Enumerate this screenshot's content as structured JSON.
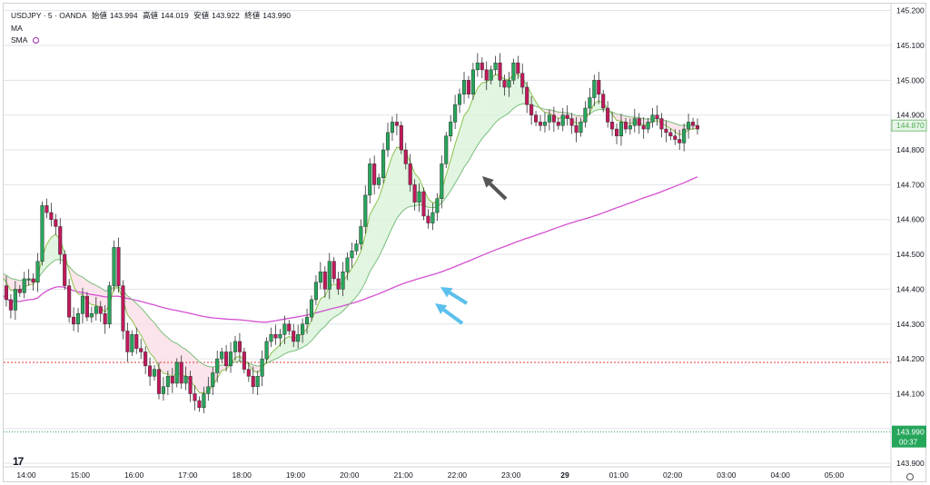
{
  "legend": {
    "symbol": "USDJPY · 5 · OANDA",
    "open_label": "始値",
    "open": "143.994",
    "high_label": "高値",
    "high": "144.019",
    "low_label": "安値",
    "low": "143.922",
    "close_label": "終値",
    "close": "143.990",
    "ma_label": "MA",
    "sma_label": "SMA"
  },
  "tv_logo": "17",
  "price_tags": {
    "ma_value": "144.870",
    "last_price": "143.990",
    "countdown": "00:37"
  },
  "colors": {
    "up": "#26a65b",
    "down": "#c2185b",
    "bg": "#ffffff",
    "grid": "#e0e3eb",
    "ma_fast": "#8bc34a",
    "ma_slow": "#7bbf7b",
    "sma_long": "#d54fd1",
    "cloud_bull": "#d9f2d9",
    "cloud_bear": "#fadde6",
    "arrow_dark": "#555555",
    "arrow_blue": "#5bc0eb",
    "hline": "#e53935"
  },
  "chart_data": {
    "type": "candlestick",
    "y_ticks": [
      "145.200",
      "145.100",
      "145.000",
      "144.900",
      "144.800",
      "144.700",
      "144.600",
      "144.500",
      "144.400",
      "144.300",
      "144.200",
      "144.100",
      "144.000",
      "143.900"
    ],
    "ylim": [
      143.89,
      145.22
    ],
    "x_ticks": [
      "14:00",
      "15:00",
      "16:00",
      "17:00",
      "18:00",
      "19:00",
      "20:00",
      "21:00",
      "22:00",
      "23:00",
      "29",
      "01:00",
      "02:00",
      "03:00",
      "04:00",
      "05:00"
    ],
    "candles_per_hour": 12,
    "x_start_hour": 13.42,
    "hline_price": 144.19,
    "last_price": 143.99,
    "ma_value": 144.87,
    "closes": [
      144.45,
      144.41,
      144.37,
      144.34,
      144.4,
      144.39,
      144.43,
      144.43,
      144.42,
      144.48,
      144.64,
      144.62,
      144.6,
      144.58,
      144.5,
      144.41,
      144.32,
      144.3,
      144.33,
      144.38,
      144.32,
      144.33,
      144.35,
      144.33,
      144.3,
      144.41,
      144.52,
      144.41,
      144.28,
      144.22,
      144.27,
      144.23,
      144.22,
      144.18,
      144.15,
      144.17,
      144.1,
      144.12,
      144.15,
      144.13,
      144.19,
      144.13,
      144.15,
      144.1,
      144.08,
      144.06,
      144.1,
      144.12,
      144.16,
      144.2,
      144.22,
      144.18,
      144.22,
      144.25,
      144.22,
      144.17,
      144.15,
      144.12,
      144.15,
      144.2,
      144.25,
      144.27,
      144.26,
      144.27,
      144.3,
      144.28,
      144.25,
      144.27,
      144.3,
      144.32,
      144.37,
      144.42,
      144.45,
      144.4,
      144.48,
      144.43,
      144.4,
      144.45,
      144.49,
      144.51,
      144.53,
      144.58,
      144.67,
      144.76,
      144.7,
      144.72,
      144.8,
      144.85,
      144.88,
      144.87,
      144.8,
      144.76,
      144.7,
      144.65,
      144.68,
      144.61,
      144.59,
      144.62,
      144.66,
      144.76,
      144.84,
      144.88,
      144.93,
      144.96,
      145.0,
      144.96,
      145.03,
      145.05,
      145.03,
      145.0,
      145.03,
      145.05,
      145.0,
      144.98,
      145.0,
      145.05,
      145.02,
      144.98,
      144.93,
      144.9,
      144.88,
      144.87,
      144.88,
      144.9,
      144.88,
      144.87,
      144.9,
      144.89,
      144.87,
      144.85,
      144.88,
      144.92,
      144.95,
      145.0,
      144.96,
      144.92,
      144.88,
      144.86,
      144.84,
      144.88,
      144.86,
      144.87,
      144.89,
      144.87,
      144.86,
      144.88,
      144.9,
      144.89,
      144.86,
      144.85,
      144.84,
      144.83,
      144.82,
      144.86,
      144.88,
      144.87,
      144.86
    ]
  }
}
